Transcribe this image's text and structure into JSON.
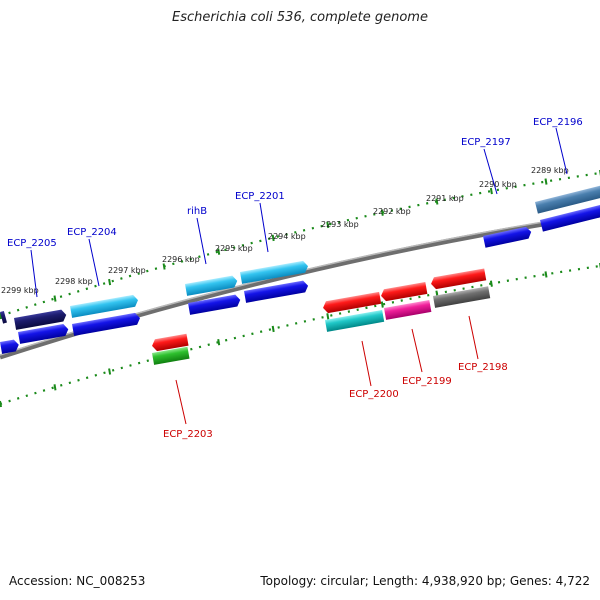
{
  "title": "Escherichia coli 536, complete genome",
  "footer": {
    "accession": "Accession: NC_008253",
    "topology": "Topology: circular; Length: 4,938,920 bp; Genes: 4,722"
  },
  "colors": {
    "backbone": "#808080",
    "tick": "#1a8a1a",
    "forward_label": "#0000cc",
    "reverse_label": "#cc0000"
  },
  "coordinates": [
    {
      "label": "2299 kbp"
    },
    {
      "label": "2298 kbp"
    },
    {
      "label": "2297 kbp"
    },
    {
      "label": "2296 kbp"
    },
    {
      "label": "2295 kbp"
    },
    {
      "label": "2294 kbp"
    },
    {
      "label": "2293 kbp"
    },
    {
      "label": "2292 kbp"
    },
    {
      "label": "2291 kbp"
    },
    {
      "label": "2290 kbp"
    },
    {
      "label": "2289 kbp"
    }
  ],
  "genes": [
    {
      "name": "ECP_2205",
      "strand": "forward"
    },
    {
      "name": "ECP_2204",
      "strand": "forward"
    },
    {
      "name": "rihB",
      "strand": "forward"
    },
    {
      "name": "ECP_2201",
      "strand": "forward"
    },
    {
      "name": "ECP_2197",
      "strand": "forward"
    },
    {
      "name": "ECP_2196",
      "strand": "forward"
    },
    {
      "name": "ECP_2203",
      "strand": "reverse"
    },
    {
      "name": "ECP_2200",
      "strand": "reverse"
    },
    {
      "name": "ECP_2199",
      "strand": "reverse"
    },
    {
      "name": "ECP_2198",
      "strand": "reverse"
    }
  ]
}
